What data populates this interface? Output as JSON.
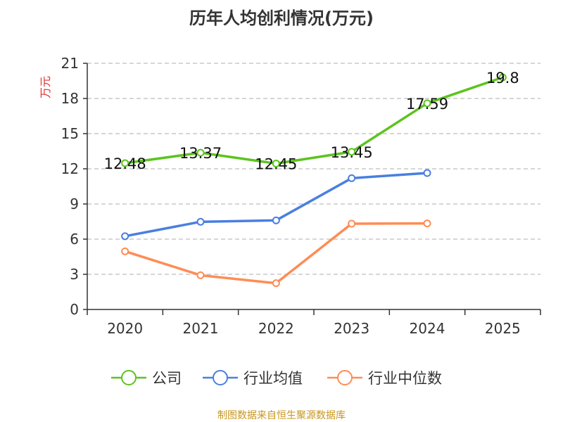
{
  "chart_data": {
    "type": "line",
    "title": "历年人均创利情况(万元)",
    "ylabel": "万元",
    "categories": [
      "2020",
      "2021",
      "2022",
      "2023",
      "2024",
      "2025"
    ],
    "ylim": [
      0,
      21
    ],
    "yticks": [
      0,
      3,
      6,
      9,
      12,
      15,
      18,
      21
    ],
    "grid": true,
    "legend_position": "bottom",
    "series": [
      {
        "name": "公司",
        "color": "#5cc41e",
        "values": [
          12.48,
          13.37,
          12.45,
          13.45,
          17.59,
          19.8
        ],
        "labels": [
          "12.48",
          "13.37",
          "12.45",
          "13.45",
          "17.59",
          "19.8"
        ]
      },
      {
        "name": "行业均值",
        "color": "#4a7fe0",
        "values": [
          6.25,
          7.48,
          7.6,
          11.2,
          11.64,
          null
        ]
      },
      {
        "name": "行业中位数",
        "color": "#ff8c55",
        "values": [
          4.96,
          2.92,
          2.24,
          7.32,
          7.34,
          null
        ]
      }
    ]
  },
  "source": "制图数据来自恒生聚源数据库"
}
